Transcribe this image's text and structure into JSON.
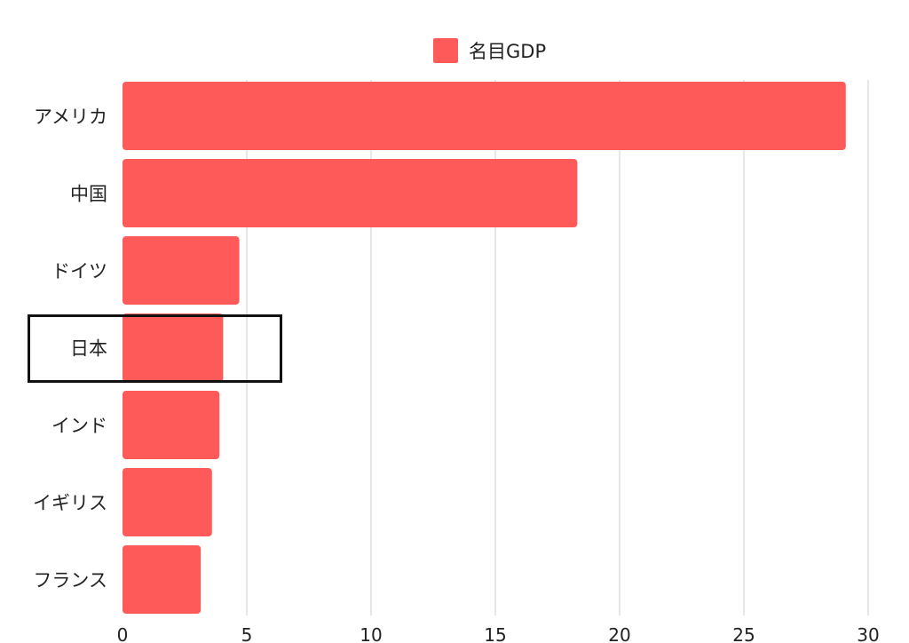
{
  "chart_data": {
    "type": "bar",
    "orientation": "horizontal",
    "categories": [
      "アメリカ",
      "中国",
      "ドイツ",
      "日本",
      "インド",
      "イギリス",
      "フランス"
    ],
    "series": [
      {
        "name": "名目GDP",
        "values": [
          29.1,
          18.3,
          4.7,
          4.05,
          3.9,
          3.6,
          3.15
        ],
        "color": "#ff5a5a"
      }
    ],
    "xlim": [
      0,
      30
    ],
    "xticks": [
      0,
      5,
      10,
      15,
      20,
      25,
      30
    ],
    "grid": "vertical",
    "legend_position": "top-center",
    "highlighted_category": "日本"
  }
}
